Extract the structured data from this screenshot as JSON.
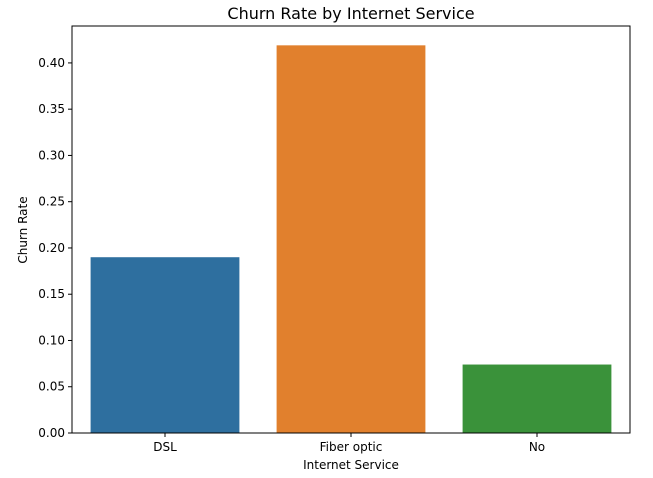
{
  "chart_data": {
    "type": "bar",
    "title": "Churn Rate by Internet Service",
    "xlabel": "Internet Service",
    "ylabel": "Churn Rate",
    "categories": [
      "DSL",
      "Fiber optic",
      "No"
    ],
    "values": [
      0.19,
      0.419,
      0.074
    ],
    "colors": [
      "#2e6f9f",
      "#e1802d",
      "#3a923a"
    ],
    "ylim": [
      0,
      0.4399
    ],
    "yticks": [
      0.0,
      0.05,
      0.1,
      0.15,
      0.2,
      0.25,
      0.3,
      0.35,
      0.4
    ],
    "ytick_labels": [
      "0.00",
      "0.05",
      "0.10",
      "0.15",
      "0.20",
      "0.25",
      "0.30",
      "0.35",
      "0.40"
    ],
    "grid": false,
    "legend": "none"
  }
}
